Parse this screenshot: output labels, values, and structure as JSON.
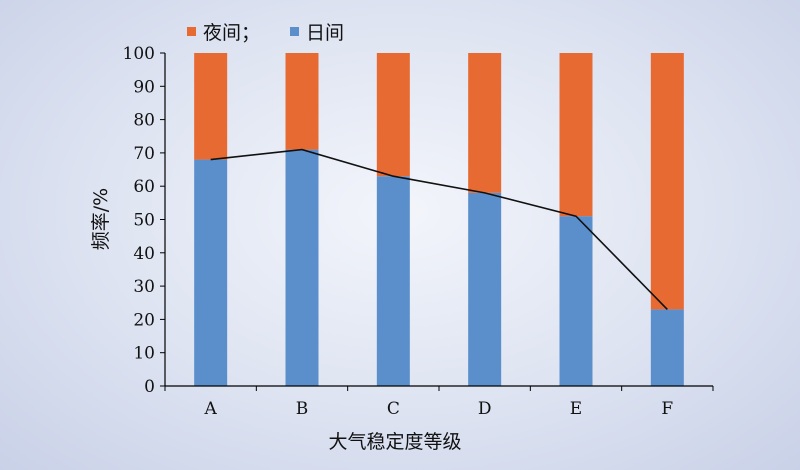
{
  "chart_data": {
    "type": "bar",
    "stacked": true,
    "categories": [
      "A",
      "B",
      "C",
      "D",
      "E",
      "F"
    ],
    "series": [
      {
        "name": "日间",
        "values": [
          68,
          71,
          63,
          58,
          51,
          23
        ],
        "color": "#5b8fcc"
      },
      {
        "name": "夜间",
        "values": [
          32,
          29,
          37,
          42,
          49,
          77
        ],
        "color": "#e86a33"
      }
    ],
    "line_series": {
      "values": [
        68,
        71,
        63,
        58,
        51,
        23
      ],
      "color": "#111111"
    },
    "legend": {
      "items": [
        "夜间；",
        "日间"
      ],
      "placement": "top-left"
    },
    "xlabel": "大气稳定度等级",
    "ylabel": "频率/%",
    "ylim": [
      0,
      100
    ],
    "yticks": [
      0,
      10,
      20,
      30,
      40,
      50,
      60,
      70,
      80,
      90,
      100
    ],
    "grid": false
  }
}
